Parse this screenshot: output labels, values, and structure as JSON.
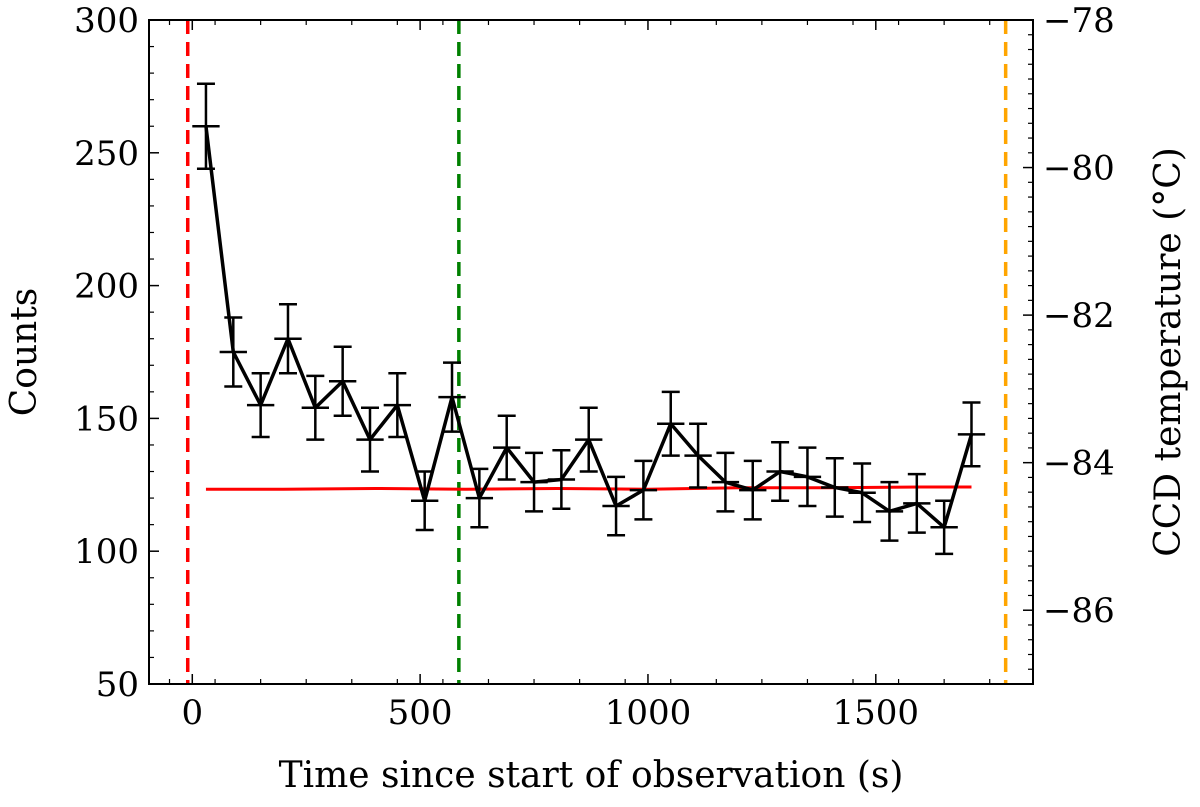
{
  "chart_data": {
    "type": "line",
    "xlabel": "Time since start of observation (s)",
    "ylabel": "Counts",
    "y2label": "CCD temperature (°C)",
    "xlim": [
      -95,
      1845
    ],
    "ylim": [
      50,
      300
    ],
    "y2lim": [
      -87,
      -78
    ],
    "x_ticks": [
      0,
      500,
      1000,
      1500
    ],
    "x_tick_labels": [
      "0",
      "500",
      "1000",
      "1500"
    ],
    "y_ticks": [
      50,
      100,
      150,
      200,
      250,
      300
    ],
    "y_tick_labels": [
      "50",
      "100",
      "150",
      "200",
      "250",
      "300"
    ],
    "y2_ticks": [
      -86,
      -84,
      -82,
      -80,
      -78
    ],
    "y2_tick_labels": [
      "−86",
      "−84",
      "−82",
      "−80",
      "−78"
    ],
    "series": [
      {
        "axis": "left",
        "color": "#000000",
        "x_err": 30,
        "x": [
          30,
          90,
          150,
          210,
          270,
          330,
          390,
          450,
          510,
          570,
          630,
          690,
          750,
          810,
          870,
          930,
          990,
          1050,
          1110,
          1170,
          1230,
          1290,
          1350,
          1410,
          1470,
          1530,
          1590,
          1650,
          1710
        ],
        "y": [
          260,
          175,
          155,
          180,
          154,
          164,
          142,
          155,
          119,
          158,
          120,
          139,
          126,
          127,
          142,
          117,
          123,
          148,
          136,
          126,
          123,
          130,
          128,
          124,
          122,
          115,
          118,
          109,
          144
        ],
        "y_err": [
          16,
          13,
          12,
          13,
          12,
          13,
          12,
          12,
          11,
          13,
          11,
          12,
          11,
          11,
          12,
          11,
          11,
          12,
          12,
          11,
          11,
          11,
          11,
          11,
          11,
          11,
          11,
          10,
          12
        ]
      },
      {
        "axis": "right",
        "color": "#ff0000",
        "x": [
          30,
          200,
          400,
          600,
          800,
          1000,
          1200,
          1400,
          1600,
          1710
        ],
        "y": [
          -84.36,
          -84.36,
          -84.35,
          -84.36,
          -84.35,
          -84.36,
          -84.34,
          -84.34,
          -84.33,
          -84.33
        ]
      }
    ],
    "vlines": [
      {
        "x": -10,
        "color": "#ff0000"
      },
      {
        "x": 585,
        "color": "#008000"
      },
      {
        "x": 1785,
        "color": "#ffa500"
      }
    ]
  }
}
